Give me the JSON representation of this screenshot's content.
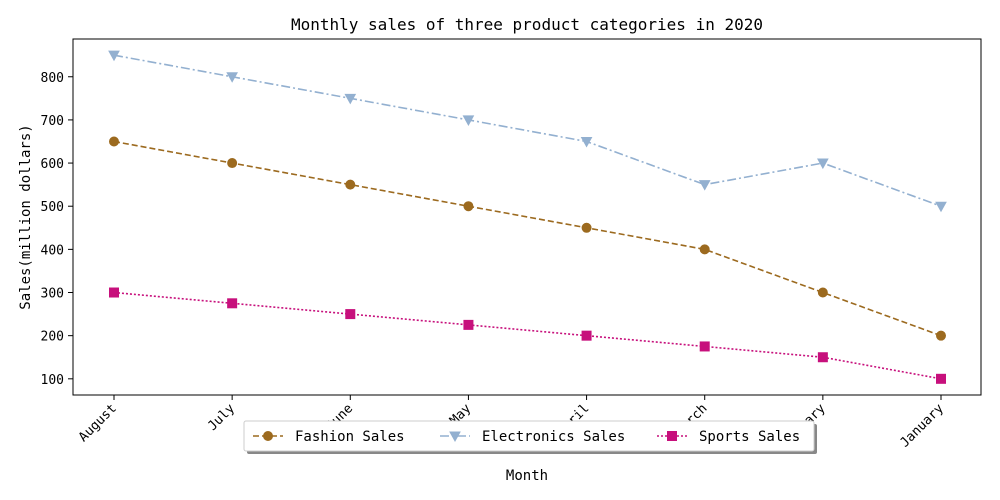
{
  "chart_data": {
    "type": "line",
    "title": "Monthly sales of three product categories in 2020",
    "xlabel": "Month",
    "ylabel": "Sales(million dollars)",
    "categories": [
      "August",
      "July",
      "June",
      "May",
      "April",
      "March",
      "February",
      "January"
    ],
    "yticks": [
      100,
      200,
      300,
      400,
      500,
      600,
      700,
      800
    ],
    "ylim": [
      62.5,
      887.5
    ],
    "grid": false,
    "legend_position": "bottom-center",
    "series": [
      {
        "name": "Fashion Sales",
        "values": [
          650,
          600,
          550,
          500,
          450,
          400,
          300,
          200
        ],
        "color": "#9c6a1f",
        "marker": "circle",
        "linestyle": "dashed"
      },
      {
        "name": "Electronics Sales",
        "values": [
          850,
          800,
          750,
          700,
          650,
          550,
          600,
          500
        ],
        "color": "#93b0d0",
        "marker": "triangle-down",
        "linestyle": "dashdot"
      },
      {
        "name": "Sports Sales",
        "values": [
          300,
          275,
          250,
          225,
          200,
          175,
          150,
          100
        ],
        "color": "#c7107c",
        "marker": "square",
        "linestyle": "dotted"
      }
    ]
  }
}
